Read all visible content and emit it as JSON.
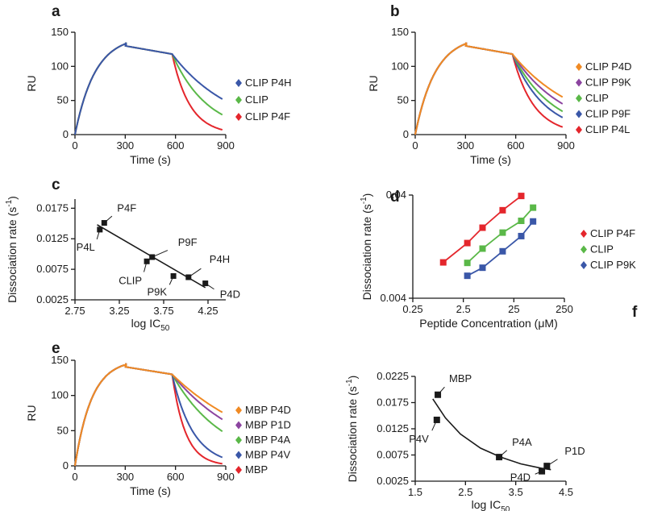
{
  "figure": {
    "panels": [
      "a",
      "b",
      "c",
      "d",
      "e",
      "f"
    ]
  },
  "chart_data": [
    {
      "panel": "a",
      "type": "line",
      "xlabel": "Time (s)",
      "ylabel": "RU",
      "xlim": [
        0,
        900
      ],
      "ylim": [
        0,
        150
      ],
      "xticks": [
        0,
        300,
        600,
        900
      ],
      "yticks": [
        0,
        50,
        100,
        150
      ],
      "association_end": 300,
      "injection_stop": 580,
      "association_tau": 120,
      "series": [
        {
          "name": "CLIP P4H",
          "color": "#3a57a8",
          "start_ru": 118,
          "end_ru": 52
        },
        {
          "name": "CLIP",
          "color": "#5ab848",
          "start_ru": 118,
          "end_ru": 29
        },
        {
          "name": "CLIP P4F",
          "color": "#e4262c",
          "start_ru": 118,
          "end_ru": 7
        }
      ]
    },
    {
      "panel": "b",
      "type": "line",
      "xlabel": "Time (s)",
      "ylabel": "RU",
      "xlim": [
        0,
        900
      ],
      "ylim": [
        0,
        150
      ],
      "xticks": [
        0,
        300,
        600,
        900
      ],
      "yticks": [
        0,
        50,
        100,
        150
      ],
      "association_end": 300,
      "injection_stop": 580,
      "association_tau": 120,
      "series": [
        {
          "name": "CLIP P4D",
          "color": "#f08a24",
          "start_ru": 118,
          "end_ru": 55
        },
        {
          "name": "CLIP P9K",
          "color": "#8c44a0",
          "start_ru": 118,
          "end_ru": 45
        },
        {
          "name": "CLIP",
          "color": "#5ab848",
          "start_ru": 118,
          "end_ru": 34
        },
        {
          "name": "CLIP P9F",
          "color": "#3a57a8",
          "start_ru": 118,
          "end_ru": 25
        },
        {
          "name": "CLIP P4L",
          "color": "#e4262c",
          "start_ru": 118,
          "end_ru": 11
        }
      ]
    },
    {
      "panel": "c",
      "type": "scatter",
      "xlabel": "log IC",
      "xlabel_sub": "50",
      "ylabel": "Dissociation rate (s",
      "ylabel_sup": "-1",
      "ylabel_close": ")",
      "xlim": [
        2.75,
        4.45
      ],
      "ylim": [
        0.0025,
        0.019
      ],
      "xticks": [
        "2.75",
        "3.25",
        "3.75",
        "4.25"
      ],
      "yticks": [
        "0.0025",
        "0.0075",
        "0.0125",
        "0.0175"
      ],
      "fit_line": {
        "x": [
          3.0,
          4.22
        ],
        "y": [
          0.0148,
          0.0045
        ]
      },
      "points": [
        {
          "label": "P4F",
          "x": 3.08,
          "y": 0.0151
        },
        {
          "label": "P4L",
          "x": 3.03,
          "y": 0.014
        },
        {
          "label": "P9F",
          "x": 3.62,
          "y": 0.0095
        },
        {
          "label": "CLIP",
          "x": 3.56,
          "y": 0.0088
        },
        {
          "label": "P9K",
          "x": 3.86,
          "y": 0.0064
        },
        {
          "label": "P4H",
          "x": 4.03,
          "y": 0.0062
        },
        {
          "label": "P4D",
          "x": 4.22,
          "y": 0.0052
        }
      ]
    },
    {
      "panel": "d",
      "type": "line",
      "xlabel": "Peptide Concentration (μM)",
      "ylabel": "Dissociation rate (s",
      "ylabel_sup": "-1",
      "ylabel_close": ")",
      "xscale": "log",
      "yscale": "log",
      "xlim": [
        0.25,
        250
      ],
      "ylim": [
        0.004,
        0.04
      ],
      "xticks": [
        0.25,
        2.5,
        25,
        250
      ],
      "xtick_labels": [
        "0.25",
        "2.5",
        "25",
        "250"
      ],
      "yticks": [
        0.004,
        0.04
      ],
      "ytick_labels": [
        "0.004",
        "0.04"
      ],
      "series": [
        {
          "name": "CLIP P4F",
          "color": "#e4262c",
          "x": [
            1,
            3,
            6,
            15,
            35
          ],
          "y": [
            0.0089,
            0.0137,
            0.0193,
            0.0285,
            0.0392
          ]
        },
        {
          "name": "CLIP",
          "color": "#5ab848",
          "x": [
            3,
            6,
            15,
            35,
            60
          ],
          "y": [
            0.0088,
            0.0121,
            0.0173,
            0.0225,
            0.0302
          ]
        },
        {
          "name": "CLIP P9K",
          "color": "#3a57a8",
          "x": [
            3,
            6,
            15,
            35,
            60
          ],
          "y": [
            0.0066,
            0.0079,
            0.0114,
            0.016,
            0.0222
          ]
        }
      ]
    },
    {
      "panel": "e",
      "type": "line",
      "xlabel": "Time (s)",
      "ylabel": "RU",
      "xlim": [
        0,
        900
      ],
      "ylim": [
        0,
        150
      ],
      "xticks": [
        0,
        300,
        600,
        900
      ],
      "yticks": [
        0,
        50,
        100,
        150
      ],
      "association_end": 300,
      "injection_stop": 580,
      "association_tau": 100,
      "series": [
        {
          "name": "MBP P4D",
          "color": "#f08a24",
          "start_ru": 130,
          "end_ru": 76
        },
        {
          "name": "MBP P1D",
          "color": "#8c44a0",
          "start_ru": 130,
          "end_ru": 66
        },
        {
          "name": "MBP P4A",
          "color": "#5ab848",
          "start_ru": 130,
          "end_ru": 49
        },
        {
          "name": "MBP P4V",
          "color": "#3a57a8",
          "start_ru": 130,
          "end_ru": 12
        },
        {
          "name": "MBP",
          "color": "#e4262c",
          "start_ru": 130,
          "end_ru": 3
        }
      ]
    },
    {
      "panel": "f",
      "type": "scatter",
      "xlabel": "log IC",
      "xlabel_sub": "50",
      "ylabel": "Dissociation rate (s",
      "ylabel_sup": "-1",
      "ylabel_close": ")",
      "xlim": [
        1.5,
        4.5
      ],
      "ylim": [
        0.0025,
        0.0225
      ],
      "xticks": [
        "1.5",
        "2.5",
        "3.5",
        "4.5"
      ],
      "yticks": [
        "0.0025",
        "0.0075",
        "0.0125",
        "0.0175",
        "0.0225"
      ],
      "fit_curve": {
        "x": [
          1.85,
          2.1,
          2.4,
          2.8,
          3.2,
          3.6,
          4.0,
          4.2
        ],
        "y": [
          0.0182,
          0.0146,
          0.0115,
          0.0088,
          0.0071,
          0.0058,
          0.005,
          0.0047
        ]
      },
      "points": [
        {
          "label": "MBP",
          "x": 1.95,
          "y": 0.019
        },
        {
          "label": "P4V",
          "x": 1.93,
          "y": 0.0142
        },
        {
          "label": "P4A",
          "x": 3.17,
          "y": 0.0071
        },
        {
          "label": "P1D",
          "x": 4.12,
          "y": 0.0054
        },
        {
          "label": "P4D",
          "x": 4.02,
          "y": 0.0044
        }
      ]
    }
  ]
}
